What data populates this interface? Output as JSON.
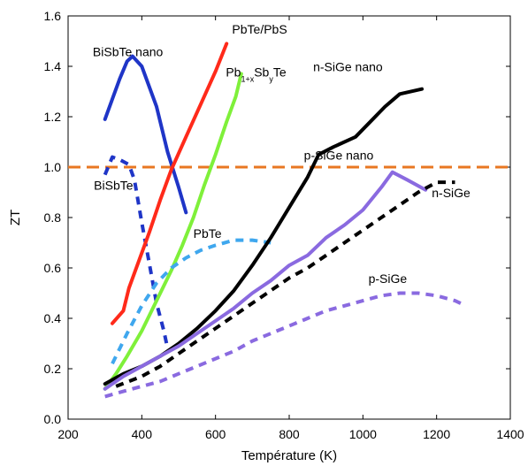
{
  "chart_data": {
    "type": "line",
    "title": "",
    "xlabel": "Température (K)",
    "ylabel": "ZT",
    "xlim": [
      200,
      1400
    ],
    "ylim": [
      0,
      1.6
    ],
    "xticks": [
      200,
      400,
      600,
      800,
      1000,
      1200,
      1400
    ],
    "yticks": [
      0.0,
      0.2,
      0.4,
      0.6,
      0.8,
      1.0,
      1.2,
      1.4,
      1.6
    ],
    "xtick_labels": [
      "200",
      "400",
      "600",
      "800",
      "1000",
      "1200",
      "1400"
    ],
    "ytick_labels": [
      "0.0",
      "0.2",
      "0.4",
      "0.6",
      "0.8",
      "1.0",
      "1.2",
      "1.4",
      "1.6"
    ],
    "grid": false,
    "legend": "none",
    "reference_line": {
      "y": 1.0,
      "color": "#e87722",
      "style": "dashed"
    },
    "series": [
      {
        "name": "BiSbTe nano",
        "color": "#1f35c7",
        "style": "solid",
        "points": [
          [
            300,
            1.19
          ],
          [
            320,
            1.27
          ],
          [
            340,
            1.35
          ],
          [
            360,
            1.42
          ],
          [
            375,
            1.44
          ],
          [
            400,
            1.4
          ],
          [
            440,
            1.24
          ],
          [
            470,
            1.06
          ],
          [
            500,
            0.92
          ],
          [
            520,
            0.82
          ]
        ]
      },
      {
        "name": "BiSbTe",
        "color": "#1f35c7",
        "style": "dashed",
        "points": [
          [
            300,
            0.97
          ],
          [
            320,
            1.04
          ],
          [
            340,
            1.03
          ],
          [
            365,
            1.01
          ],
          [
            380,
            0.95
          ],
          [
            400,
            0.78
          ],
          [
            420,
            0.62
          ],
          [
            440,
            0.46
          ],
          [
            460,
            0.35
          ],
          [
            470,
            0.28
          ]
        ]
      },
      {
        "name": "PbTe/PbS",
        "color": "#ff2a1a",
        "style": "solid",
        "points": [
          [
            320,
            0.38
          ],
          [
            350,
            0.43
          ],
          [
            365,
            0.52
          ],
          [
            390,
            0.62
          ],
          [
            420,
            0.74
          ],
          [
            450,
            0.87
          ],
          [
            480,
            0.99
          ],
          [
            520,
            1.12
          ],
          [
            560,
            1.25
          ],
          [
            600,
            1.38
          ],
          [
            630,
            1.49
          ]
        ]
      },
      {
        "name": "Pb1+xSbyTe",
        "color": "#7ff03a",
        "style": "solid",
        "points": [
          [
            300,
            0.12
          ],
          [
            330,
            0.18
          ],
          [
            360,
            0.25
          ],
          [
            400,
            0.35
          ],
          [
            440,
            0.47
          ],
          [
            480,
            0.59
          ],
          [
            510,
            0.69
          ],
          [
            540,
            0.8
          ],
          [
            570,
            0.93
          ],
          [
            600,
            1.05
          ],
          [
            630,
            1.18
          ],
          [
            655,
            1.28
          ],
          [
            670,
            1.37
          ]
        ]
      },
      {
        "name": "PbTe",
        "color": "#3fa7ee",
        "style": "dashed",
        "points": [
          [
            320,
            0.22
          ],
          [
            360,
            0.34
          ],
          [
            400,
            0.45
          ],
          [
            440,
            0.54
          ],
          [
            480,
            0.6
          ],
          [
            520,
            0.64
          ],
          [
            560,
            0.67
          ],
          [
            600,
            0.69
          ],
          [
            650,
            0.71
          ],
          [
            700,
            0.71
          ],
          [
            750,
            0.7
          ]
        ]
      },
      {
        "name": "n-SiGe nano",
        "color": "#000000",
        "style": "solid",
        "points": [
          [
            300,
            0.14
          ],
          [
            350,
            0.18
          ],
          [
            400,
            0.21
          ],
          [
            450,
            0.25
          ],
          [
            500,
            0.3
          ],
          [
            550,
            0.36
          ],
          [
            600,
            0.43
          ],
          [
            650,
            0.51
          ],
          [
            700,
            0.61
          ],
          [
            750,
            0.72
          ],
          [
            800,
            0.84
          ],
          [
            850,
            0.96
          ],
          [
            880,
            1.05
          ],
          [
            920,
            1.08
          ],
          [
            980,
            1.12
          ],
          [
            1020,
            1.18
          ],
          [
            1060,
            1.24
          ],
          [
            1100,
            1.29
          ],
          [
            1160,
            1.31
          ]
        ]
      },
      {
        "name": "p-SiGe nano",
        "color": "#8a6ae0",
        "style": "solid",
        "points": [
          [
            300,
            0.12
          ],
          [
            350,
            0.17
          ],
          [
            400,
            0.21
          ],
          [
            450,
            0.25
          ],
          [
            500,
            0.29
          ],
          [
            550,
            0.34
          ],
          [
            600,
            0.39
          ],
          [
            650,
            0.44
          ],
          [
            700,
            0.5
          ],
          [
            750,
            0.55
          ],
          [
            800,
            0.61
          ],
          [
            850,
            0.65
          ],
          [
            900,
            0.72
          ],
          [
            950,
            0.77
          ],
          [
            1000,
            0.83
          ],
          [
            1050,
            0.92
          ],
          [
            1080,
            0.98
          ],
          [
            1120,
            0.95
          ],
          [
            1170,
            0.91
          ]
        ]
      },
      {
        "name": "n-SiGe",
        "color": "#000000",
        "style": "dashed",
        "points": [
          [
            330,
            0.13
          ],
          [
            400,
            0.17
          ],
          [
            450,
            0.21
          ],
          [
            500,
            0.26
          ],
          [
            550,
            0.31
          ],
          [
            600,
            0.36
          ],
          [
            650,
            0.41
          ],
          [
            700,
            0.46
          ],
          [
            750,
            0.51
          ],
          [
            800,
            0.56
          ],
          [
            850,
            0.6
          ],
          [
            900,
            0.65
          ],
          [
            950,
            0.7
          ],
          [
            1000,
            0.75
          ],
          [
            1050,
            0.8
          ],
          [
            1100,
            0.85
          ],
          [
            1150,
            0.9
          ],
          [
            1200,
            0.94
          ],
          [
            1250,
            0.94
          ]
        ]
      },
      {
        "name": "p-SiGe",
        "color": "#8a6ae0",
        "style": "dashed",
        "points": [
          [
            300,
            0.09
          ],
          [
            350,
            0.11
          ],
          [
            400,
            0.13
          ],
          [
            450,
            0.15
          ],
          [
            500,
            0.18
          ],
          [
            550,
            0.21
          ],
          [
            600,
            0.24
          ],
          [
            650,
            0.27
          ],
          [
            700,
            0.31
          ],
          [
            750,
            0.34
          ],
          [
            800,
            0.37
          ],
          [
            850,
            0.4
          ],
          [
            900,
            0.43
          ],
          [
            950,
            0.45
          ],
          [
            1000,
            0.47
          ],
          [
            1050,
            0.49
          ],
          [
            1100,
            0.5
          ],
          [
            1150,
            0.5
          ],
          [
            1200,
            0.49
          ],
          [
            1250,
            0.47
          ],
          [
            1280,
            0.45
          ]
        ]
      }
    ],
    "annotations": [
      {
        "text": "BiSbTe nano",
        "x": 267,
        "y": 1.44
      },
      {
        "text": "BiSbTe",
        "x": 270,
        "y": 0.91
      },
      {
        "text": "PbTe/PbS",
        "x": 645,
        "y": 1.53
      },
      {
        "text": "Pb",
        "sub1": "1+x",
        "mid": "Sb",
        "sub2": "y",
        "tail": "Te",
        "x": 628,
        "y": 1.36
      },
      {
        "text": "PbTe",
        "x": 540,
        "y": 0.72
      },
      {
        "text": "n-SiGe nano",
        "x": 865,
        "y": 1.38
      },
      {
        "text": "p-SiGe nano",
        "x": 840,
        "y": 1.03
      },
      {
        "text": "n-SiGe",
        "x": 1187,
        "y": 0.88
      },
      {
        "text": "p-SiGe",
        "x": 1015,
        "y": 0.54
      }
    ]
  }
}
